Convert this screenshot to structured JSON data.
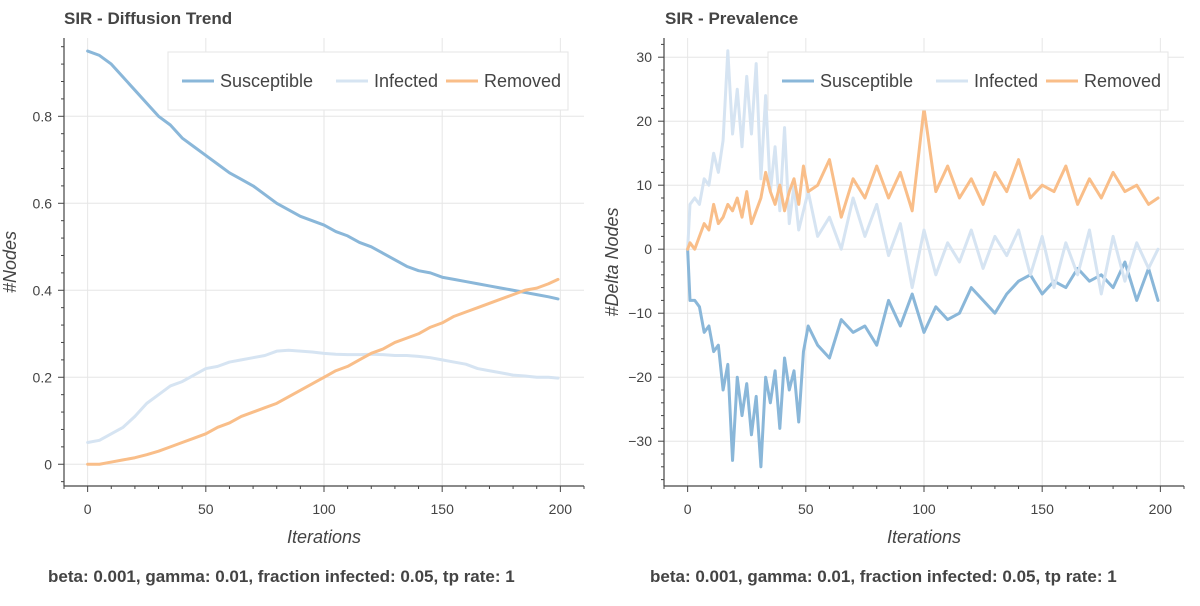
{
  "charts": [
    {
      "title": "SIR - Diffusion Trend",
      "xlabel": "Iterations",
      "ylabel": "#Nodes",
      "caption": "beta: 0.001, gamma: 0.01, fraction infected: 0.05, tp rate: 1",
      "legend": [
        "Susceptible",
        "Infected",
        "Removed"
      ]
    },
    {
      "title": "SIR - Prevalence",
      "xlabel": "Iterations",
      "ylabel": "#Delta Nodes",
      "caption": "beta: 0.001, gamma: 0.01, fraction infected: 0.05, tp rate: 1",
      "legend": [
        "Susceptible",
        "Infected",
        "Removed"
      ]
    }
  ],
  "colors": {
    "Susceptible": "#8ab7d9",
    "Infected": "#d6e4f2",
    "Removed": "#f9be89"
  },
  "chart_data": [
    {
      "type": "line",
      "title": "SIR - Diffusion Trend",
      "xlabel": "Iterations",
      "ylabel": "#Nodes",
      "xlim": [
        -10,
        210
      ],
      "ylim": [
        -0.05,
        0.98
      ],
      "xticks": [
        0,
        50,
        100,
        150,
        200
      ],
      "yticks": [
        0,
        0.2,
        0.4,
        0.6,
        0.8
      ],
      "ytick_labels": [
        "0",
        "0.2",
        "0.4",
        "0.6",
        "0.8"
      ],
      "grid": true,
      "legend_position": "top-right",
      "series": [
        {
          "name": "Susceptible",
          "x": [
            0,
            5,
            10,
            15,
            20,
            25,
            30,
            35,
            40,
            45,
            50,
            55,
            60,
            65,
            70,
            75,
            80,
            85,
            90,
            95,
            100,
            105,
            110,
            115,
            120,
            125,
            130,
            135,
            140,
            145,
            150,
            155,
            160,
            165,
            170,
            175,
            180,
            185,
            190,
            195,
            199
          ],
          "y": [
            0.95,
            0.94,
            0.92,
            0.89,
            0.86,
            0.83,
            0.8,
            0.78,
            0.75,
            0.73,
            0.71,
            0.69,
            0.67,
            0.655,
            0.64,
            0.62,
            0.6,
            0.585,
            0.57,
            0.56,
            0.55,
            0.535,
            0.525,
            0.51,
            0.5,
            0.485,
            0.47,
            0.455,
            0.445,
            0.44,
            0.43,
            0.425,
            0.42,
            0.415,
            0.41,
            0.405,
            0.4,
            0.395,
            0.39,
            0.385,
            0.38
          ]
        },
        {
          "name": "Infected",
          "x": [
            0,
            5,
            10,
            15,
            20,
            25,
            30,
            35,
            40,
            45,
            50,
            55,
            60,
            65,
            70,
            75,
            80,
            85,
            90,
            95,
            100,
            105,
            110,
            115,
            120,
            125,
            130,
            135,
            140,
            145,
            150,
            155,
            160,
            165,
            170,
            175,
            180,
            185,
            190,
            195,
            199
          ],
          "y": [
            0.05,
            0.055,
            0.07,
            0.085,
            0.11,
            0.14,
            0.16,
            0.18,
            0.19,
            0.205,
            0.22,
            0.225,
            0.235,
            0.24,
            0.245,
            0.25,
            0.26,
            0.262,
            0.26,
            0.258,
            0.255,
            0.253,
            0.252,
            0.252,
            0.253,
            0.252,
            0.25,
            0.25,
            0.248,
            0.245,
            0.24,
            0.235,
            0.23,
            0.22,
            0.215,
            0.21,
            0.205,
            0.203,
            0.2,
            0.2,
            0.198
          ]
        },
        {
          "name": "Removed",
          "x": [
            0,
            5,
            10,
            15,
            20,
            25,
            30,
            35,
            40,
            45,
            50,
            55,
            60,
            65,
            70,
            75,
            80,
            85,
            90,
            95,
            100,
            105,
            110,
            115,
            120,
            125,
            130,
            135,
            140,
            145,
            150,
            155,
            160,
            165,
            170,
            175,
            180,
            185,
            190,
            195,
            199
          ],
          "y": [
            0,
            0,
            0.005,
            0.01,
            0.015,
            0.022,
            0.03,
            0.04,
            0.05,
            0.06,
            0.07,
            0.085,
            0.095,
            0.11,
            0.12,
            0.13,
            0.14,
            0.155,
            0.17,
            0.185,
            0.2,
            0.215,
            0.225,
            0.24,
            0.255,
            0.265,
            0.28,
            0.29,
            0.3,
            0.315,
            0.325,
            0.34,
            0.35,
            0.36,
            0.37,
            0.38,
            0.39,
            0.4,
            0.405,
            0.415,
            0.425
          ]
        }
      ]
    },
    {
      "type": "line",
      "title": "SIR - Prevalence",
      "xlabel": "Iterations",
      "ylabel": "#Delta Nodes",
      "xlim": [
        -10,
        210
      ],
      "ylim": [
        -37,
        33
      ],
      "xticks": [
        0,
        50,
        100,
        150,
        200
      ],
      "yticks": [
        -30,
        -20,
        -10,
        0,
        10,
        20,
        30
      ],
      "ytick_labels": [
        "−30",
        "−20",
        "−10",
        "0",
        "10",
        "20",
        "30"
      ],
      "grid": true,
      "legend_position": "top-right",
      "series": [
        {
          "name": "Susceptible",
          "x": [
            0,
            1,
            3,
            5,
            7,
            9,
            11,
            13,
            15,
            17,
            19,
            21,
            23,
            25,
            27,
            29,
            31,
            33,
            35,
            37,
            39,
            41,
            43,
            45,
            47,
            49,
            51,
            55,
            60,
            65,
            70,
            75,
            80,
            85,
            90,
            95,
            100,
            105,
            110,
            115,
            120,
            125,
            130,
            135,
            140,
            145,
            150,
            155,
            160,
            165,
            170,
            175,
            180,
            185,
            190,
            195,
            199
          ],
          "y": [
            0,
            -8,
            -8,
            -9,
            -13,
            -12,
            -16,
            -15,
            -22,
            -18,
            -33,
            -20,
            -26,
            -21,
            -29,
            -23,
            -34,
            -20,
            -24,
            -19,
            -28,
            -17,
            -22,
            -19,
            -27,
            -16,
            -12,
            -15,
            -17,
            -11,
            -13,
            -12,
            -15,
            -8,
            -12,
            -7,
            -13,
            -9,
            -11,
            -10,
            -6,
            -8,
            -10,
            -7,
            -5,
            -4,
            -7,
            -5,
            -6,
            -3,
            -5,
            -4,
            -6,
            -2,
            -8,
            -3,
            -8
          ]
        },
        {
          "name": "Infected",
          "x": [
            0,
            1,
            3,
            5,
            7,
            9,
            11,
            13,
            15,
            17,
            19,
            21,
            23,
            25,
            27,
            29,
            31,
            33,
            35,
            37,
            39,
            41,
            43,
            45,
            47,
            49,
            51,
            55,
            60,
            65,
            70,
            75,
            80,
            85,
            90,
            95,
            100,
            105,
            110,
            115,
            120,
            125,
            130,
            135,
            140,
            145,
            150,
            155,
            160,
            165,
            170,
            175,
            180,
            185,
            190,
            195,
            199
          ],
          "y": [
            0,
            7,
            8,
            7,
            11,
            10,
            15,
            12,
            17,
            31,
            18,
            25,
            16,
            27,
            18,
            29,
            11,
            24,
            9,
            16,
            6,
            19,
            4,
            10,
            3,
            6,
            9,
            2,
            5,
            0,
            8,
            2,
            7,
            -1,
            4,
            -6,
            3,
            -4,
            1,
            -2,
            3,
            -3,
            2,
            -1,
            3,
            -4,
            2,
            -6,
            1,
            -4,
            3,
            -7,
            2,
            -5,
            1,
            -3,
            0
          ]
        },
        {
          "name": "Removed",
          "x": [
            0,
            1,
            3,
            5,
            7,
            9,
            11,
            13,
            15,
            17,
            19,
            21,
            23,
            25,
            27,
            29,
            31,
            33,
            35,
            37,
            39,
            41,
            43,
            45,
            47,
            49,
            51,
            55,
            60,
            65,
            70,
            75,
            80,
            85,
            90,
            95,
            100,
            105,
            110,
            115,
            120,
            125,
            130,
            135,
            140,
            145,
            150,
            155,
            160,
            165,
            170,
            175,
            180,
            185,
            190,
            195,
            199
          ],
          "y": [
            0,
            1,
            0,
            2,
            4,
            3,
            7,
            4,
            5,
            7,
            6,
            8,
            5,
            9,
            4,
            6,
            8,
            12,
            9,
            7,
            10,
            6,
            9,
            11,
            7,
            13,
            9,
            10,
            14,
            5,
            11,
            8,
            13,
            8,
            12,
            6,
            22,
            9,
            13,
            8,
            11,
            7,
            12,
            9,
            14,
            8,
            10,
            9,
            13,
            7,
            11,
            8,
            12,
            9,
            10,
            7,
            8
          ]
        }
      ]
    }
  ]
}
